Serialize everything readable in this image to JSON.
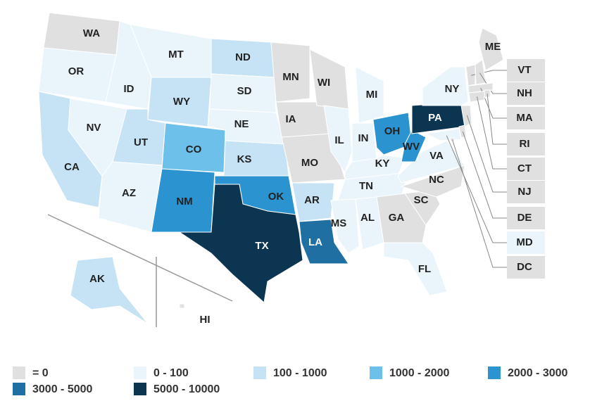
{
  "map": {
    "states": [
      {
        "label": "WA",
        "color": "#e0e0e0"
      },
      {
        "label": "OR",
        "color": "#eaf5fb"
      },
      {
        "label": "CA",
        "color": "#c6e3f5"
      },
      {
        "label": "NV",
        "color": "#eaf5fb"
      },
      {
        "label": "ID",
        "color": "#eaf5fb"
      },
      {
        "label": "MT",
        "color": "#eaf5fb"
      },
      {
        "label": "WY",
        "color": "#c6e3f5"
      },
      {
        "label": "UT",
        "color": "#c6e3f5"
      },
      {
        "label": "AZ",
        "color": "#eaf5fb"
      },
      {
        "label": "CO",
        "color": "#6cc0ea"
      },
      {
        "label": "NM",
        "color": "#2a93d0"
      },
      {
        "label": "ND",
        "color": "#c6e3f5"
      },
      {
        "label": "SD",
        "color": "#eaf5fb"
      },
      {
        "label": "NE",
        "color": "#eaf5fb"
      },
      {
        "label": "KS",
        "color": "#c6e3f5"
      },
      {
        "label": "OK",
        "color": "#2a93d0"
      },
      {
        "label": "TX",
        "color": "#0b3550"
      },
      {
        "label": "MN",
        "color": "#e0e0e0"
      },
      {
        "label": "IA",
        "color": "#e0e0e0"
      },
      {
        "label": "MO",
        "color": "#e0e0e0"
      },
      {
        "label": "AR",
        "color": "#c6e3f5"
      },
      {
        "label": "LA",
        "color": "#1f6fa3"
      },
      {
        "label": "WI",
        "color": "#e0e0e0"
      },
      {
        "label": "IL",
        "color": "#eaf5fb"
      },
      {
        "label": "MI",
        "color": "#eaf5fb"
      },
      {
        "label": "IN",
        "color": "#eaf5fb"
      },
      {
        "label": "OH",
        "color": "#2a93d0"
      },
      {
        "label": "KY",
        "color": "#eaf5fb"
      },
      {
        "label": "TN",
        "color": "#eaf5fb"
      },
      {
        "label": "MS",
        "color": "#eaf5fb"
      },
      {
        "label": "AL",
        "color": "#eaf5fb"
      },
      {
        "label": "GA",
        "color": "#e0e0e0"
      },
      {
        "label": "FL",
        "color": "#eaf5fb"
      },
      {
        "label": "SC",
        "color": "#e0e0e0"
      },
      {
        "label": "NC",
        "color": "#e0e0e0"
      },
      {
        "label": "VA",
        "color": "#eaf5fb"
      },
      {
        "label": "WV",
        "color": "#2a93d0"
      },
      {
        "label": "PA",
        "color": "#0b3550"
      },
      {
        "label": "NY",
        "color": "#eaf5fb"
      },
      {
        "label": "ME",
        "color": "#e0e0e0"
      },
      {
        "label": "VT",
        "color": "#e0e0e0"
      },
      {
        "label": "NH",
        "color": "#e0e0e0"
      },
      {
        "label": "MA",
        "color": "#e0e0e0"
      },
      {
        "label": "RI",
        "color": "#e0e0e0"
      },
      {
        "label": "CT",
        "color": "#e0e0e0"
      },
      {
        "label": "NJ",
        "color": "#e0e0e0"
      },
      {
        "label": "DE",
        "color": "#e0e0e0"
      },
      {
        "label": "MD",
        "color": "#eaf5fb"
      },
      {
        "label": "DC",
        "color": "#e0e0e0"
      },
      {
        "label": "AK",
        "color": "#c6e3f5"
      },
      {
        "label": "HI",
        "color": "#e0e0e0"
      }
    ],
    "legend": [
      {
        "label": "= 0",
        "color": "#e0e0e0"
      },
      {
        "label": "0 - 100",
        "color": "#eaf5fb"
      },
      {
        "label": "100 - 1000",
        "color": "#c6e3f5"
      },
      {
        "label": "1000 - 2000",
        "color": "#6cc0ea"
      },
      {
        "label": "2000 - 3000",
        "color": "#2a93d0"
      },
      {
        "label": "3000 - 5000",
        "color": "#1f6fa3"
      },
      {
        "label": "5000 - 10000",
        "color": "#0b3550"
      }
    ]
  }
}
